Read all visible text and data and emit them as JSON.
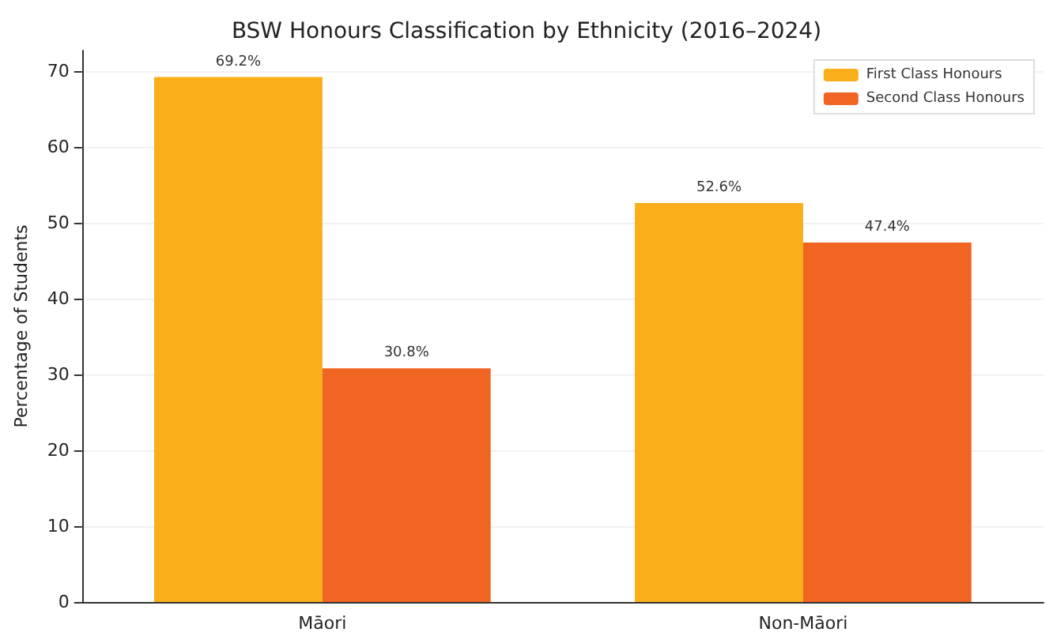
{
  "chart_data": {
    "type": "bar",
    "title": "BSW Honours Classification by Ethnicity (2016–2024)",
    "ylabel": "Percentage of Students",
    "categories": [
      "Māori",
      "Non-Māori"
    ],
    "series": [
      {
        "name": "First Class Honours",
        "color": "#f9ae1a",
        "values": [
          69.2,
          52.6
        ],
        "value_labels": [
          "69.2%",
          "52.6%"
        ]
      },
      {
        "name": "Second Class Honours",
        "color": "#f06522",
        "values": [
          30.8,
          47.4
        ],
        "value_labels": [
          "30.8%",
          "47.4%"
        ]
      }
    ],
    "ylim": [
      0,
      72.7
    ],
    "yticks": [
      0,
      10,
      20,
      30,
      40,
      50,
      60,
      70
    ],
    "grid": "y",
    "legend": "top right"
  }
}
